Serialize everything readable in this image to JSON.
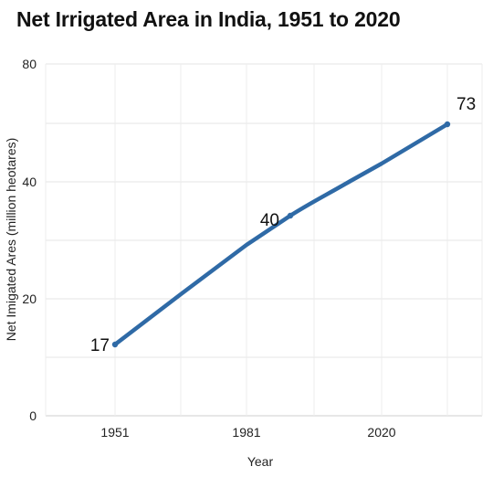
{
  "chart_data": {
    "type": "line",
    "title": "Net Irrigated Area in India, 1951 to 2020",
    "xlabel": "Year",
    "ylabel": "Net Imigated Ares (million heotares)",
    "x_tick_labels": [
      "1951",
      "1981",
      "2020"
    ],
    "y_tick_labels": [
      "0",
      "20",
      "40",
      "80"
    ],
    "grid": true,
    "series": [
      {
        "color": "#2f6aa6",
        "points": [
          {
            "x": "1951",
            "y": 17,
            "label": "17"
          },
          {
            "x": "1981",
            "y": 40,
            "label": "40"
          },
          {
            "x": "2020",
            "y": 73,
            "label": "73"
          }
        ]
      }
    ]
  }
}
